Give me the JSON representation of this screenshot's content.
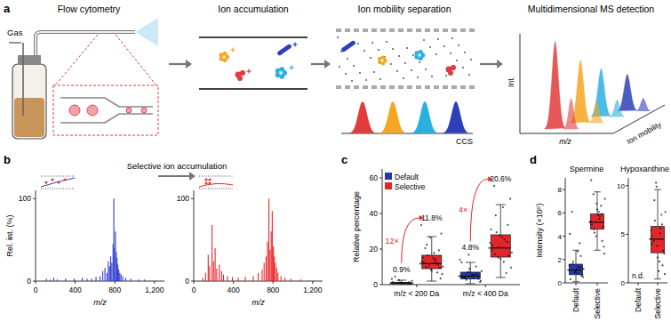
{
  "panel_labels": [
    "a",
    "b",
    "c",
    "d"
  ],
  "diagram": {
    "stages": [
      {
        "title": "Flow cytometry",
        "labels": [
          "Gas"
        ]
      },
      {
        "title": "Ion accumulation"
      },
      {
        "title": "Ion mobility separation",
        "labels": [
          "CCS"
        ]
      },
      {
        "title": "Multidimensional MS detection",
        "labels": [
          "Int.",
          "m/z",
          "Ion mobility"
        ]
      }
    ]
  },
  "chart_data": [
    {
      "type": "spectrum",
      "title": "Selective ion accumulation",
      "x_label": "m/z",
      "y_label": "Rel. int. (%)",
      "xlim": [
        0,
        1300
      ],
      "xticks": [
        0,
        400,
        800,
        {
          "value": 1200,
          "label": "1,200"
        }
      ],
      "ylim": [
        0,
        110
      ],
      "yticks": [
        0,
        100
      ],
      "series": [
        {
          "color": "#2f3bd0",
          "x": [
            110,
            150,
            184,
            220,
            302,
            390,
            472,
            520,
            566,
            610,
            650,
            678,
            700,
            720,
            734,
            746,
            758,
            770,
            782,
            790,
            796,
            806,
            815,
            822,
            830,
            840,
            850,
            862,
            880,
            910,
            960,
            1040,
            1100
          ],
          "values": [
            3,
            2,
            4,
            2,
            3,
            3,
            4,
            3,
            3,
            5,
            6,
            12,
            16,
            10,
            24,
            18,
            30,
            22,
            45,
            100,
            40,
            60,
            35,
            28,
            20,
            14,
            10,
            8,
            6,
            4,
            3,
            2,
            2
          ]
        },
        {
          "color": "#e8262b",
          "x": [
            90,
            120,
            146,
            160,
            184,
            200,
            216,
            232,
            258,
            280,
            300,
            340,
            390,
            450,
            520,
            600,
            650,
            690,
            710,
            730,
            744,
            758,
            770,
            782,
            792,
            804,
            812,
            824,
            836,
            850,
            880,
            920,
            980,
            1080
          ],
          "values": [
            4,
            10,
            32,
            18,
            68,
            24,
            40,
            15,
            20,
            12,
            8,
            6,
            5,
            4,
            5,
            6,
            10,
            14,
            22,
            30,
            48,
            100,
            38,
            60,
            85,
            42,
            30,
            22,
            16,
            10,
            6,
            4,
            3,
            2
          ]
        }
      ]
    },
    {
      "type": "box",
      "y_label": "Relative percentage",
      "categories": [
        "m/z < 200 Da",
        "m/z < 400 Da"
      ],
      "ylim": [
        0,
        65
      ],
      "yticks": [
        0,
        20,
        40,
        60
      ],
      "legend": "top-left",
      "data_labels": true,
      "series": [
        {
          "name": "Default",
          "color": "#2636b0",
          "values": [
            0.9,
            4.8
          ],
          "value_labels": [
            "0.9%",
            "4.8%"
          ],
          "q1": [
            0.5,
            3.3
          ],
          "q3": [
            1.3,
            7.0
          ],
          "whisker_low": [
            0.0,
            0.5
          ],
          "whisker_high": [
            2.5,
            12.5
          ],
          "points": [
            [
              0.2,
              0.5,
              0.8,
              0.9,
              1.1,
              0.4,
              0.7,
              1.3,
              0.9,
              0.6,
              1.0,
              1.5,
              2.1,
              0.3,
              0.8,
              1.2,
              0.9,
              3.2,
              0.5,
              1.0,
              0.7,
              2.6,
              4.5,
              1.1,
              0.9
            ],
            [
              4.8,
              3.2,
              5.5,
              6.9,
              2.7,
              4.1,
              7.6,
              5.0,
              3.6,
              8.9,
              4.4,
              12.5,
              2.1,
              6.2,
              5.7,
              16.8,
              3.9,
              4.6,
              1.5,
              10.2,
              5.3,
              7.1,
              4.0,
              14.0
            ]
          ]
        },
        {
          "name": "Selective",
          "color": "#e3262b",
          "values": [
            11.8,
            20.6
          ],
          "value_labels": [
            "11.8%",
            "20.6%"
          ],
          "q1": [
            9.0,
            15.5
          ],
          "q3": [
            16.5,
            28.0
          ],
          "whisker_low": [
            2.0,
            4.0
          ],
          "whisker_high": [
            27.0,
            45.0
          ],
          "points": [
            [
              11.8,
              9.5,
              14.2,
              7.8,
              16.5,
              12.4,
              10.1,
              19.3,
              13.0,
              8.6,
              22.4,
              15.1,
              5.9,
              11.2,
              17.8,
              26.5,
              9.9,
              12.9,
              28.7,
              6.8,
              14.8,
              10.7,
              20.5,
              33.5,
              3.4,
              12.1
            ],
            [
              20.6,
              16.2,
              25.3,
              14.5,
              29.4,
              22.1,
              18.0,
              33.6,
              12.8,
              27.5,
              38.9,
              19.4,
              9.6,
              24.0,
              43.5,
              21.2,
              17.1,
              31.0,
              48.2,
              6.5,
              26.6,
              15.3,
              55.4,
              23.5
            ]
          ]
        }
      ],
      "annotations": [
        {
          "text": "12×",
          "category": 0
        },
        {
          "text": "4×",
          "category": 1
        }
      ]
    },
    {
      "type": "box",
      "title": "Spermine",
      "y_label": "Intensity (×10⁵)",
      "categories": [
        "Default",
        "Selective"
      ],
      "colors": [
        "#2636b0",
        "#e3262b"
      ],
      "ylim": [
        0,
        9
      ],
      "yticks": [
        0,
        2,
        4,
        6,
        8
      ],
      "values": [
        1.1,
        5.2
      ],
      "q1": [
        0.7,
        4.6
      ],
      "q3": [
        1.6,
        5.9
      ],
      "whisker_low": [
        0.1,
        2.8
      ],
      "whisker_high": [
        2.8,
        7.8
      ],
      "points": [
        [
          1.1,
          0.6,
          1.4,
          0.9,
          1.8,
          0.3,
          1.2,
          2.3,
          0.8,
          1.0,
          1.6,
          4.2,
          0.5,
          1.3,
          2.7,
          0.9,
          6.1,
          1.5,
          0.7,
          3.4,
          1.2
        ],
        [
          5.2,
          4.8,
          5.7,
          6.3,
          4.3,
          5.0,
          7.2,
          3.6,
          5.5,
          6.8,
          4.6,
          8.8,
          2.5,
          5.9,
          6.1,
          4.0,
          7.6,
          5.3,
          3.1,
          6.6,
          5.8
        ]
      ]
    },
    {
      "type": "box",
      "title": "Hypoxanthine",
      "categories": [
        "Default",
        "Selective"
      ],
      "colors": [
        "#2636b0",
        "#e3262b"
      ],
      "ylim": [
        0,
        10.8
      ],
      "yticks": [
        0,
        5,
        10
      ],
      "values": [
        null,
        4.5
      ],
      "value_labels": [
        "n.d.",
        null
      ],
      "q1": [
        null,
        3.1
      ],
      "q3": [
        null,
        5.8
      ],
      "whisker_low": [
        null,
        0.4
      ],
      "whisker_high": [
        null,
        9.6
      ],
      "points": [
        [],
        [
          4.5,
          3.3,
          5.6,
          2.6,
          6.4,
          4.0,
          7.3,
          1.8,
          5.1,
          3.8,
          8.5,
          4.8,
          0.9,
          6.0,
          2.2,
          9.9,
          4.3,
          5.4,
          3.0,
          7.0,
          1.2,
          10.3
        ]
      ]
    }
  ]
}
